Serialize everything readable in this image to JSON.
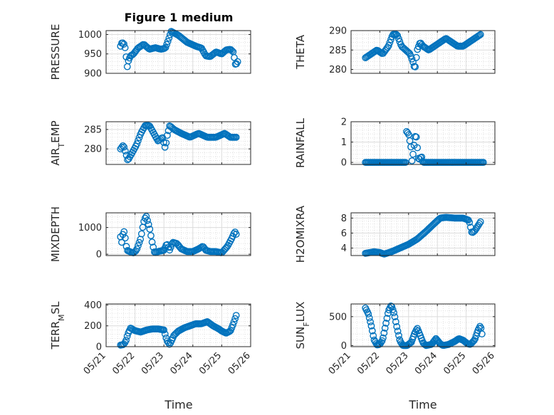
{
  "chart_data": {
    "type": "scatter",
    "title": "Figure 1 medium",
    "marker_color": "#0072BD",
    "grid": true,
    "xlabel": "Time",
    "xticks": [
      0,
      1,
      2,
      3,
      4,
      5
    ],
    "xtick_labels": [
      "05/21",
      "05/22",
      "05/23",
      "05/24",
      "05/25",
      "05/26"
    ],
    "xlim": [
      0,
      5
    ],
    "panels": [
      {
        "ylabel": "PRESSURE",
        "ylim": [
          900,
          1010
        ],
        "yticks": [
          900,
          950,
          1000
        ],
        "knots": [
          [
            0.5,
            970
          ],
          [
            0.55,
            980
          ],
          [
            0.62,
            975
          ],
          [
            0.68,
            960
          ],
          [
            0.72,
            912
          ],
          [
            0.78,
            935
          ],
          [
            0.85,
            945
          ],
          [
            0.95,
            950
          ],
          [
            1.1,
            965
          ],
          [
            1.3,
            975
          ],
          [
            1.5,
            962
          ],
          [
            1.7,
            966
          ],
          [
            1.9,
            962
          ],
          [
            2.05,
            965
          ],
          [
            2.15,
            985
          ],
          [
            2.25,
            1008
          ],
          [
            2.5,
            998
          ],
          [
            2.8,
            980
          ],
          [
            3.1,
            970
          ],
          [
            3.3,
            965
          ],
          [
            3.45,
            945
          ],
          [
            3.6,
            943
          ],
          [
            3.8,
            955
          ],
          [
            4.0,
            950
          ],
          [
            4.15,
            960
          ],
          [
            4.3,
            962
          ],
          [
            4.4,
            955
          ],
          [
            4.48,
            920
          ],
          [
            4.55,
            930
          ]
        ],
        "n": 105
      },
      {
        "ylabel": "THETA",
        "ylim": [
          279,
          290
        ],
        "yticks": [
          280,
          285,
          290
        ],
        "knots": [
          [
            0.5,
            283
          ],
          [
            0.7,
            284
          ],
          [
            0.9,
            285
          ],
          [
            1.1,
            284
          ],
          [
            1.3,
            286
          ],
          [
            1.45,
            289
          ],
          [
            1.6,
            289
          ],
          [
            1.75,
            286
          ],
          [
            1.9,
            285
          ],
          [
            2.05,
            284
          ],
          [
            2.15,
            282
          ],
          [
            2.22,
            280
          ],
          [
            2.3,
            285
          ],
          [
            2.4,
            287
          ],
          [
            2.5,
            286
          ],
          [
            2.7,
            285
          ],
          [
            2.9,
            286
          ],
          [
            3.1,
            287
          ],
          [
            3.3,
            288
          ],
          [
            3.5,
            287
          ],
          [
            3.7,
            286
          ],
          [
            3.9,
            286
          ],
          [
            4.1,
            287
          ],
          [
            4.3,
            288
          ],
          [
            4.5,
            289
          ]
        ],
        "n": 105
      },
      {
        "ylabel": "AIR_TEMP",
        "ylim": [
          276,
          287
        ],
        "yticks": [
          280,
          285
        ],
        "knots": [
          [
            0.5,
            280
          ],
          [
            0.6,
            281
          ],
          [
            0.68,
            279
          ],
          [
            0.75,
            277
          ],
          [
            0.9,
            279
          ],
          [
            1.05,
            281
          ],
          [
            1.2,
            284
          ],
          [
            1.35,
            286
          ],
          [
            1.5,
            286
          ],
          [
            1.65,
            284
          ],
          [
            1.8,
            282
          ],
          [
            1.95,
            283
          ],
          [
            2.05,
            280
          ],
          [
            2.1,
            283
          ],
          [
            2.2,
            286
          ],
          [
            2.35,
            285
          ],
          [
            2.6,
            284
          ],
          [
            2.9,
            283
          ],
          [
            3.2,
            284
          ],
          [
            3.5,
            283
          ],
          [
            3.8,
            283
          ],
          [
            4.1,
            284
          ],
          [
            4.3,
            283
          ],
          [
            4.5,
            283
          ]
        ],
        "n": 100
      },
      {
        "ylabel": "RAINFALL",
        "ylim": [
          -0.1,
          2
        ],
        "yticks": [
          0,
          1,
          2
        ],
        "knots": [
          [
            0.5,
            0
          ],
          [
            1.9,
            0
          ],
          [
            1.91,
            1.55
          ],
          [
            2.0,
            1.4
          ],
          [
            2.1,
            0.6
          ],
          [
            2.12,
            0
          ],
          [
            2.25,
            1.5
          ],
          [
            2.35,
            0.1
          ],
          [
            2.45,
            0.3
          ],
          [
            2.5,
            0
          ],
          [
            4.6,
            0
          ]
        ],
        "n": 110
      },
      {
        "ylabel": "MIXDEPTH",
        "ylim": [
          -50,
          1550
        ],
        "yticks": [
          0,
          1000
        ],
        "knots": [
          [
            0.5,
            650
          ],
          [
            0.55,
            400
          ],
          [
            0.6,
            950
          ],
          [
            0.65,
            700
          ],
          [
            0.72,
            150
          ],
          [
            0.85,
            80
          ],
          [
            0.95,
            50
          ],
          [
            1.05,
            150
          ],
          [
            1.2,
            600
          ],
          [
            1.3,
            1200
          ],
          [
            1.38,
            1450
          ],
          [
            1.5,
            1000
          ],
          [
            1.6,
            400
          ],
          [
            1.68,
            50
          ],
          [
            1.8,
            100
          ],
          [
            2.0,
            150
          ],
          [
            2.1,
            400
          ],
          [
            2.2,
            150
          ],
          [
            2.3,
            450
          ],
          [
            2.45,
            400
          ],
          [
            2.6,
            200
          ],
          [
            2.8,
            100
          ],
          [
            3.0,
            100
          ],
          [
            3.2,
            200
          ],
          [
            3.35,
            300
          ],
          [
            3.45,
            150
          ],
          [
            3.6,
            100
          ],
          [
            3.8,
            100
          ],
          [
            4.0,
            50
          ],
          [
            4.2,
            300
          ],
          [
            4.35,
            600
          ],
          [
            4.45,
            850
          ],
          [
            4.5,
            750
          ]
        ],
        "n": 100
      },
      {
        "ylabel": "H2OMIXRA",
        "ylim": [
          3,
          8.7
        ],
        "yticks": [
          4,
          6,
          8
        ],
        "knots": [
          [
            0.5,
            3.3
          ],
          [
            0.8,
            3.5
          ],
          [
            1.0,
            3.4
          ],
          [
            1.15,
            3.2
          ],
          [
            1.4,
            3.5
          ],
          [
            1.7,
            4.0
          ],
          [
            2.0,
            4.5
          ],
          [
            2.3,
            5.2
          ],
          [
            2.6,
            6.2
          ],
          [
            2.9,
            7.3
          ],
          [
            3.1,
            8.0
          ],
          [
            3.3,
            8.1
          ],
          [
            3.6,
            8.0
          ],
          [
            3.9,
            8.0
          ],
          [
            4.1,
            7.7
          ],
          [
            4.2,
            6.0
          ],
          [
            4.3,
            6.3
          ],
          [
            4.5,
            7.5
          ]
        ],
        "n": 105
      },
      {
        "ylabel": "TERR_MSL",
        "ylim": [
          0,
          410
        ],
        "yticks": [
          0,
          200,
          400
        ],
        "knots": [
          [
            0.5,
            15
          ],
          [
            0.6,
            20
          ],
          [
            0.68,
            50
          ],
          [
            0.75,
            120
          ],
          [
            0.85,
            180
          ],
          [
            0.95,
            160
          ],
          [
            1.05,
            150
          ],
          [
            1.2,
            140
          ],
          [
            1.4,
            160
          ],
          [
            1.6,
            170
          ],
          [
            1.8,
            170
          ],
          [
            2.0,
            160
          ],
          [
            2.1,
            60
          ],
          [
            2.2,
            20
          ],
          [
            2.35,
            110
          ],
          [
            2.5,
            150
          ],
          [
            2.7,
            180
          ],
          [
            2.9,
            200
          ],
          [
            3.1,
            220
          ],
          [
            3.3,
            220
          ],
          [
            3.5,
            240
          ],
          [
            3.7,
            200
          ],
          [
            3.9,
            170
          ],
          [
            4.0,
            150
          ],
          [
            4.15,
            130
          ],
          [
            4.3,
            150
          ],
          [
            4.4,
            220
          ],
          [
            4.5,
            300
          ]
        ],
        "n": 105
      },
      {
        "ylabel": "SUN_FLUX",
        "ylim": [
          -20,
          720
        ],
        "yticks": [
          0,
          500
        ],
        "knots": [
          [
            0.5,
            650
          ],
          [
            0.6,
            550
          ],
          [
            0.7,
            350
          ],
          [
            0.8,
            100
          ],
          [
            0.9,
            10
          ],
          [
            1.0,
            20
          ],
          [
            1.1,
            100
          ],
          [
            1.2,
            350
          ],
          [
            1.3,
            600
          ],
          [
            1.4,
            700
          ],
          [
            1.5,
            550
          ],
          [
            1.6,
            300
          ],
          [
            1.7,
            80
          ],
          [
            1.8,
            0
          ],
          [
            1.95,
            0
          ],
          [
            2.1,
            60
          ],
          [
            2.2,
            200
          ],
          [
            2.3,
            300
          ],
          [
            2.4,
            180
          ],
          [
            2.5,
            50
          ],
          [
            2.6,
            0
          ],
          [
            2.8,
            20
          ],
          [
            2.95,
            120
          ],
          [
            3.1,
            30
          ],
          [
            3.2,
            0
          ],
          [
            3.4,
            20
          ],
          [
            3.6,
            70
          ],
          [
            3.75,
            120
          ],
          [
            3.9,
            90
          ],
          [
            4.05,
            30
          ],
          [
            4.15,
            20
          ],
          [
            4.3,
            100
          ],
          [
            4.4,
            250
          ],
          [
            4.5,
            350
          ],
          [
            4.55,
            200
          ]
        ],
        "n": 120
      }
    ]
  }
}
